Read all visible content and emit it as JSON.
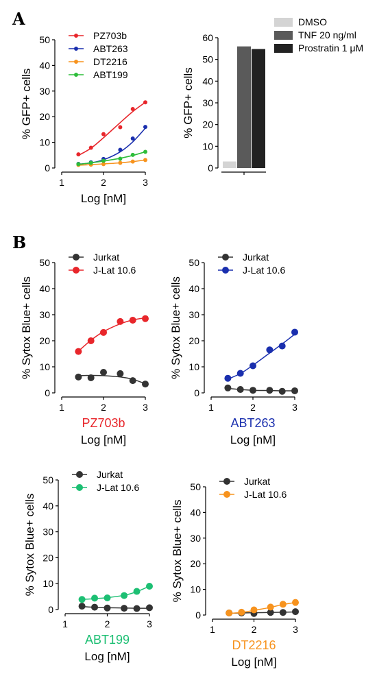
{
  "panel_labels": {
    "a": "A",
    "b": "B"
  },
  "chart_data": [
    {
      "id": "a-left",
      "type": "line",
      "xlabel": "Log [nM]",
      "ylabel": "% GFP+ cells",
      "xlim": [
        1,
        3
      ],
      "ylim": [
        0,
        50
      ],
      "xticks": [
        1,
        2,
        3
      ],
      "yticks": [
        0,
        10,
        20,
        30,
        40,
        50
      ],
      "legend_position": "top-left",
      "x": [
        1.4,
        1.7,
        2.0,
        2.4,
        2.7,
        3.0
      ],
      "series": [
        {
          "name": "PZ703b",
          "color": "#e8262b",
          "values": [
            5.3,
            7.9,
            13.2,
            15.9,
            23.0,
            25.6
          ],
          "fit": [
            4.9,
            7.7,
            11.8,
            17.7,
            22.0,
            25.6
          ]
        },
        {
          "name": "ABT263",
          "color": "#1a2fae",
          "values": [
            1.6,
            2.2,
            3.5,
            7.1,
            11.5,
            16.0
          ],
          "fit": [
            1.5,
            2.0,
            3.2,
            6.3,
            10.2,
            15.5
          ]
        },
        {
          "name": "DT2216",
          "color": "#f7931e",
          "values": [
            1.2,
            1.3,
            1.5,
            2.0,
            2.5,
            3.1
          ],
          "fit": [
            1.1,
            1.3,
            1.6,
            2.0,
            2.5,
            3.1
          ]
        },
        {
          "name": "ABT199",
          "color": "#2dbd3a",
          "values": [
            1.5,
            2.0,
            2.8,
            3.6,
            5.1,
            6.3
          ],
          "fit": [
            1.4,
            2.0,
            2.7,
            3.8,
            4.9,
            6.3
          ]
        }
      ]
    },
    {
      "id": "a-right",
      "type": "bar",
      "ylabel": "% GFP+ cells",
      "ylim": [
        0,
        60
      ],
      "yticks": [
        0,
        10,
        20,
        30,
        40,
        50,
        60
      ],
      "legend_position": "top-right",
      "series": [
        {
          "name": "DMSO",
          "color": "#d4d4d4",
          "values": [
            3.0
          ]
        },
        {
          "name": "TNF 20 ng/ml",
          "color": "#5a5a5a",
          "values": [
            56.0
          ]
        },
        {
          "name": "Prostratin 1 μM",
          "color": "#222222",
          "values": [
            54.8
          ]
        }
      ]
    },
    {
      "id": "b-pz703b",
      "type": "line",
      "drug": "PZ703b",
      "drug_color": "#e8262b",
      "xlabel": "Log [nM]",
      "ylabel": "% Sytox Blue+ cells",
      "xlim": [
        1,
        3
      ],
      "ylim": [
        0,
        50
      ],
      "xticks": [
        1,
        2,
        3
      ],
      "yticks": [
        0,
        10,
        20,
        30,
        40,
        50
      ],
      "legend_position": "top-left",
      "x": [
        1.4,
        1.7,
        2.0,
        2.4,
        2.7,
        3.0
      ],
      "series": [
        {
          "name": "Jurkat",
          "color": "#333333",
          "values": [
            6.1,
            5.8,
            7.9,
            7.4,
            4.7,
            3.4
          ],
          "fit": [
            6.6,
            6.7,
            6.6,
            6.1,
            5.2,
            3.5
          ]
        },
        {
          "name": "J-Lat 10.6",
          "color": "#e8262b",
          "values": [
            15.9,
            20.0,
            23.2,
            27.4,
            27.9,
            28.5
          ],
          "fit": [
            16.0,
            20.2,
            23.5,
            26.5,
            28.0,
            28.8
          ]
        }
      ]
    },
    {
      "id": "b-abt263",
      "type": "line",
      "drug": "ABT263",
      "drug_color": "#1a2fae",
      "xlabel": "Log [nM]",
      "ylabel": "% Sytox Blue+ cells",
      "xlim": [
        1,
        3
      ],
      "ylim": [
        0,
        50
      ],
      "xticks": [
        1,
        2,
        3
      ],
      "yticks": [
        0,
        10,
        20,
        30,
        40,
        50
      ],
      "legend_position": "top-left",
      "x": [
        1.4,
        1.7,
        2.0,
        2.4,
        2.7,
        3.0
      ],
      "series": [
        {
          "name": "Jurkat",
          "color": "#333333",
          "values": [
            1.9,
            1.3,
            1.0,
            1.0,
            0.6,
            0.8
          ],
          "fit": [
            1.7,
            1.3,
            1.0,
            0.9,
            0.8,
            0.8
          ]
        },
        {
          "name": "J-Lat 10.6",
          "color": "#1a2fae",
          "values": [
            5.6,
            7.5,
            10.4,
            16.5,
            18.0,
            23.3
          ],
          "fit": [
            5.3,
            7.4,
            10.6,
            15.3,
            18.8,
            22.5
          ]
        }
      ]
    },
    {
      "id": "b-abt199",
      "type": "line",
      "drug": "ABT199",
      "drug_color": "#1cbf73",
      "xlabel": "Log [nM]",
      "ylabel": "% Sytox Blue+ cells",
      "xlim": [
        1,
        3
      ],
      "ylim": [
        0,
        50
      ],
      "xticks": [
        1,
        2,
        3
      ],
      "yticks": [
        0,
        10,
        20,
        30,
        40,
        50
      ],
      "legend_position": "top-left",
      "x": [
        1.4,
        1.7,
        2.0,
        2.4,
        2.7,
        3.0
      ],
      "series": [
        {
          "name": "Jurkat",
          "color": "#333333",
          "values": [
            1.3,
            0.9,
            0.6,
            0.5,
            0.4,
            0.7
          ],
          "fit": [
            1.1,
            0.9,
            0.7,
            0.6,
            0.5,
            0.5
          ]
        },
        {
          "name": "J-Lat 10.6",
          "color": "#1cbf73",
          "values": [
            3.9,
            4.4,
            4.5,
            5.4,
            7.0,
            9.0
          ],
          "fit": [
            3.9,
            4.2,
            4.6,
            5.5,
            6.9,
            9.0
          ]
        }
      ]
    },
    {
      "id": "b-dt2216",
      "type": "line",
      "drug": "DT2216",
      "drug_color": "#f7931e",
      "xlabel": "Log [nM]",
      "ylabel": "% Sytox Blue+ cells",
      "xlim": [
        1,
        3
      ],
      "ylim": [
        0,
        50
      ],
      "xticks": [
        1,
        2,
        3
      ],
      "yticks": [
        0,
        10,
        20,
        30,
        40,
        50
      ],
      "legend_position": "top-left",
      "x": [
        1.4,
        1.7,
        2.0,
        2.4,
        2.7,
        3.0
      ],
      "series": [
        {
          "name": "Jurkat",
          "color": "#333333",
          "values": [
            0.8,
            0.8,
            0.6,
            1.0,
            1.0,
            1.3
          ],
          "fit": [
            0.7,
            0.8,
            0.9,
            1.0,
            1.1,
            1.2
          ]
        },
        {
          "name": "J-Lat 10.6",
          "color": "#f7931e",
          "values": [
            0.8,
            1.1,
            2.0,
            3.1,
            4.2,
            4.9
          ],
          "fit": [
            0.6,
            1.0,
            1.8,
            3.0,
            4.1,
            4.9
          ]
        }
      ]
    }
  ]
}
